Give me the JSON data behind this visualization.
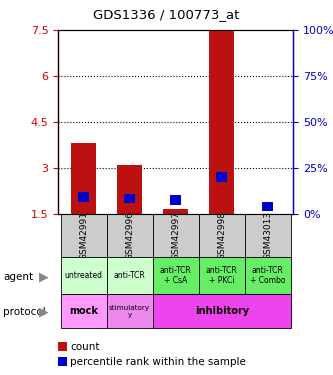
{
  "title": "GDS1336 / 100773_at",
  "samples": [
    "GSM42991",
    "GSM42996",
    "GSM42997",
    "GSM42998",
    "GSM43013"
  ],
  "count_values": [
    3.8,
    3.1,
    1.65,
    7.5,
    1.5
  ],
  "count_base": 1.5,
  "percentile_y": [
    2.05,
    2.0,
    1.95,
    2.7,
    1.75
  ],
  "left_yticks": [
    1.5,
    3.0,
    4.5,
    6.0,
    7.5
  ],
  "right_yticks": [
    0,
    25,
    50,
    75,
    100
  ],
  "ylim": [
    1.5,
    7.5
  ],
  "agent_labels": [
    "untreated",
    "anti-TCR",
    "anti-TCR\n+ CsA",
    "anti-TCR\n+ PKCi",
    "anti-TCR\n+ Combo"
  ],
  "agent_light_green": "#ccffcc",
  "agent_dark_green": "#66ee66",
  "protocol_mock_color": "#ff99ff",
  "protocol_stim_color": "#ee88ee",
  "protocol_inhib_color": "#ee44ee",
  "bar_color_red": "#bb1111",
  "bar_color_blue": "#0000cc",
  "sample_bg_color": "#cccccc",
  "left_axis_color": "#cc0000",
  "right_axis_color": "#0000cc"
}
